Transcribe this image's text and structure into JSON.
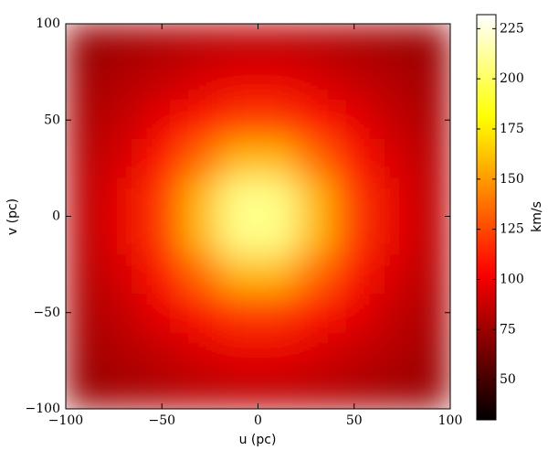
{
  "chart_data": {
    "type": "heatmap",
    "x_label": "u (pc)",
    "y_label": "v (pc)",
    "colorbar_label": "km/s",
    "x": [
      -90,
      -70,
      -50,
      -30,
      -10,
      10,
      30,
      50,
      70,
      90
    ],
    "y": [
      90,
      70,
      50,
      30,
      10,
      -10,
      -30,
      -50,
      -70,
      -90
    ],
    "values": [
      [
        74,
        77,
        80,
        83,
        85,
        85,
        83,
        80,
        77,
        74
      ],
      [
        77,
        82,
        87,
        93,
        98,
        98,
        93,
        87,
        82,
        77
      ],
      [
        80,
        87,
        98,
        110,
        120,
        120,
        110,
        98,
        87,
        80
      ],
      [
        83,
        93,
        110,
        135,
        159,
        159,
        135,
        110,
        93,
        83
      ],
      [
        85,
        98,
        120,
        159,
        208,
        208,
        159,
        120,
        98,
        85
      ],
      [
        85,
        98,
        120,
        159,
        208,
        208,
        159,
        120,
        98,
        85
      ],
      [
        83,
        93,
        110,
        135,
        159,
        159,
        135,
        110,
        93,
        83
      ],
      [
        80,
        87,
        98,
        110,
        120,
        120,
        110,
        98,
        87,
        80
      ],
      [
        77,
        82,
        87,
        93,
        98,
        98,
        93,
        87,
        82,
        77
      ],
      [
        74,
        77,
        80,
        83,
        85,
        85,
        83,
        80,
        77,
        74
      ]
    ],
    "colormap": "hot",
    "xlim": [
      -100,
      100
    ],
    "ylim": [
      -100,
      100
    ],
    "xticks": [
      {
        "value": -100,
        "label": "−100"
      },
      {
        "value": -50,
        "label": "−50"
      },
      0,
      50,
      100
    ],
    "yticks": [
      {
        "value": -100,
        "label": "−100"
      },
      {
        "value": -50,
        "label": "−50"
      },
      0,
      50,
      100
    ],
    "clim": [
      30,
      232
    ],
    "cticks": [
      50,
      75,
      100,
      125,
      150,
      175,
      200,
      225
    ]
  }
}
